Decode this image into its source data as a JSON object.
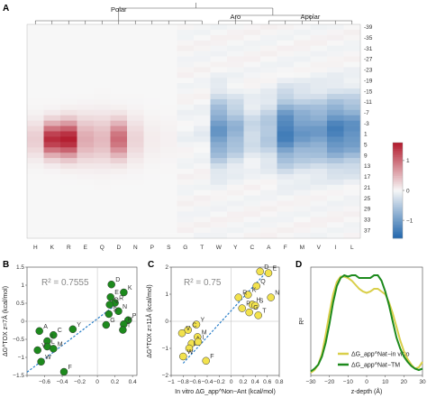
{
  "panels": [
    {
      "letter": "A"
    },
    {
      "letter": "B"
    },
    {
      "letter": "C"
    },
    {
      "letter": "D"
    }
  ],
  "chart_data": [
    {
      "type": "heatmap",
      "panel": "A",
      "group_labels": [
        "Polar",
        "Aro",
        "Apolar"
      ],
      "x_categories": [
        "H",
        "K",
        "R",
        "E",
        "Q",
        "D",
        "N",
        "P",
        "S",
        "G",
        "T",
        "W",
        "Y",
        "C",
        "A",
        "F",
        "M",
        "V",
        "I",
        "L"
      ],
      "y_tick_labels": [
        "-39",
        "-35",
        "-31",
        "-27",
        "-23",
        "-19",
        "-15",
        "-11",
        "-7",
        "-3",
        "1",
        "5",
        "9",
        "13",
        "17",
        "21",
        "25",
        "29",
        "33",
        "37"
      ],
      "z_values": [
        "-39",
        "-37",
        "-35",
        "-33",
        "-31",
        "-29",
        "-27",
        "-25",
        "-23",
        "-21",
        "-19",
        "-17",
        "-15",
        "-13",
        "-11",
        "-9",
        "-7",
        "-5",
        "-3",
        "-1",
        "1",
        "3",
        "5",
        "7",
        "9",
        "11",
        "13",
        "15",
        "17",
        "19",
        "21",
        "23",
        "25",
        "27",
        "29",
        "31",
        "33",
        "35",
        "37",
        "39"
      ],
      "colorbar_ticks": [
        {
          "value": 1,
          "label": "1"
        },
        {
          "value": 0,
          "label": "0"
        },
        {
          "value": -1,
          "label": "−1"
        }
      ],
      "colorbar_range": [
        -1.6,
        1.6
      ],
      "colors": {
        "positive": "#b2182b",
        "neutral": "#f7f7f7",
        "negative": "#2166ac"
      },
      "residue_profiles": {
        "H": {
          "peak": 0.3,
          "width": 7
        },
        "K": {
          "peak": 1.45,
          "width": 6
        },
        "R": {
          "peak": 1.55,
          "width": 6.5
        },
        "E": {
          "peak": 0.55,
          "width": 8
        },
        "Q": {
          "peak": 0.45,
          "width": 8.5
        },
        "D": {
          "peak": 1.0,
          "width": 7
        },
        "N": {
          "peak": 0.25,
          "width": 8
        },
        "P": {
          "peak": 0.08,
          "width": 8
        },
        "S": {
          "peak": 0.05,
          "width": 8
        },
        "G": {
          "peak": -0.05,
          "width": 8
        },
        "T": {
          "peak": -0.1,
          "width": 8
        },
        "W": {
          "peak": -1.05,
          "width": 12
        },
        "Y": {
          "peak": -0.75,
          "width": 11
        },
        "C": {
          "peak": -0.35,
          "width": 10
        },
        "A": {
          "peak": -0.55,
          "width": 11
        },
        "F": {
          "peak": -1.35,
          "width": 12
        },
        "M": {
          "peak": -1.05,
          "width": 12
        },
        "V": {
          "peak": -1.0,
          "width": 12
        },
        "I": {
          "peak": -1.3,
          "width": 12
        },
        "L": {
          "peak": -1.15,
          "width": 12
        }
      }
    },
    {
      "type": "scatter",
      "panel": "B",
      "annotation": "R² = 0.7555",
      "xlabel": "",
      "ylabel": "ΔG^TOX z=7Å (kcal/mol)",
      "xlim": [
        -0.8,
        0.45
      ],
      "ylim": [
        -1.5,
        1.5
      ],
      "x_ticks": [
        -0.8,
        -0.6,
        -0.4,
        -0.2,
        0,
        0.2,
        0.4
      ],
      "x_tick_labels": [
        "",
        "−0.6",
        "−0.4",
        "−0.2",
        "0",
        "0.2",
        "0.4"
      ],
      "y_ticks": [
        -1.5,
        -1,
        -0.5,
        0,
        0.5,
        1,
        1.5
      ],
      "y_tick_labels": [
        "−1.5",
        "−1",
        "−0.5",
        "0",
        "0.5",
        "1",
        "1.5"
      ],
      "point_color": "#1d8a1d",
      "points": [
        {
          "label": "D",
          "x": 0.16,
          "y": 1.02
        },
        {
          "label": "K",
          "x": 0.3,
          "y": 0.8
        },
        {
          "label": "E",
          "x": 0.15,
          "y": 0.67
        },
        {
          "label": "R",
          "x": 0.2,
          "y": 0.51
        },
        {
          "label": "Q",
          "x": 0.14,
          "y": 0.46
        },
        {
          "label": "N",
          "x": 0.24,
          "y": 0.28
        },
        {
          "label": "S",
          "x": 0.13,
          "y": 0.2
        },
        {
          "label": "P",
          "x": 0.35,
          "y": 0.03
        },
        {
          "label": "H",
          "x": 0.3,
          "y": -0.08
        },
        {
          "label": "G",
          "x": 0.1,
          "y": -0.1
        },
        {
          "label": "T",
          "x": 0.29,
          "y": -0.24
        },
        {
          "label": "Y",
          "x": -0.28,
          "y": -0.22
        },
        {
          "label": "A",
          "x": -0.66,
          "y": -0.27
        },
        {
          "label": "C",
          "x": -0.5,
          "y": -0.38
        },
        {
          "label": "I",
          "x": -0.57,
          "y": -0.55
        },
        {
          "label": "L",
          "x": -0.57,
          "y": -0.7
        },
        {
          "label": "M",
          "x": -0.5,
          "y": -0.76
        },
        {
          "label": "V",
          "x": -0.68,
          "y": -0.8
        },
        {
          "label": "W",
          "x": -0.64,
          "y": -1.12
        },
        {
          "label": "F",
          "x": -0.38,
          "y": -1.4
        }
      ],
      "fit": {
        "x0": -0.8,
        "y0": -1.41,
        "x1": 0.2,
        "y1": 0.44
      }
    },
    {
      "type": "scatter",
      "panel": "C",
      "annotation": "R² = 0.75",
      "xlabel": "In vitro ΔG_app^Non−Ant (kcal/mol)",
      "ylabel": "ΔG^TOX z=11Å (kcal/mol)",
      "xlim": [
        -1.0,
        0.8
      ],
      "ylim": [
        -2.0,
        2.0
      ],
      "x_ticks": [
        -1,
        -0.8,
        -0.6,
        -0.4,
        -0.2,
        0,
        0.2,
        0.4,
        0.6,
        0.8
      ],
      "x_tick_labels": [
        "−1",
        "−0.8",
        "−0.6",
        "−0.4",
        "−0.2",
        "0",
        "0.2",
        "0.4",
        "0.6",
        "0.8"
      ],
      "y_ticks": [
        -2,
        -1,
        0,
        1,
        2
      ],
      "y_tick_labels": [
        "−2",
        "−1",
        "0",
        "1",
        "2"
      ],
      "point_color": "#f2e24d",
      "points": [
        {
          "label": "D",
          "x": 0.48,
          "y": 1.84
        },
        {
          "label": "E",
          "x": 0.62,
          "y": 1.78
        },
        {
          "label": "Q",
          "x": 0.42,
          "y": 1.3
        },
        {
          "label": "K",
          "x": 0.28,
          "y": 0.98
        },
        {
          "label": "R",
          "x": 0.12,
          "y": 0.88
        },
        {
          "label": "N",
          "x": 0.66,
          "y": 0.88
        },
        {
          "label": "H",
          "x": 0.35,
          "y": 0.62
        },
        {
          "label": "S",
          "x": 0.4,
          "y": 0.58
        },
        {
          "label": "P",
          "x": 0.18,
          "y": 0.48
        },
        {
          "label": "G",
          "x": 0.3,
          "y": 0.33
        },
        {
          "label": "T",
          "x": 0.45,
          "y": 0.22
        },
        {
          "label": "Y",
          "x": -0.58,
          "y": -0.12
        },
        {
          "label": "C",
          "x": -0.72,
          "y": -0.32
        },
        {
          "label": "V",
          "x": -0.82,
          "y": -0.44
        },
        {
          "label": "M",
          "x": -0.56,
          "y": -0.58
        },
        {
          "label": "A",
          "x": -0.66,
          "y": -0.82
        },
        {
          "label": "I",
          "x": -0.55,
          "y": -0.76
        },
        {
          "label": "L",
          "x": -0.7,
          "y": -1.0
        },
        {
          "label": "W",
          "x": -0.8,
          "y": -1.3
        },
        {
          "label": "F",
          "x": -0.42,
          "y": -1.46
        }
      ],
      "fit": {
        "x0": -0.8,
        "y0": -1.55,
        "x1": 0.6,
        "y1": 1.85
      }
    },
    {
      "type": "line",
      "panel": "D",
      "xlabel": "z-depth (Å)",
      "ylabel": "R²",
      "xlim": [
        -30,
        30
      ],
      "ylim": [
        0,
        0.8
      ],
      "x_ticks": [
        -30,
        -20,
        -10,
        0,
        10,
        20,
        30
      ],
      "x_tick_labels": [
        "−30",
        "−20",
        "−10",
        "0",
        "10",
        "20",
        "30"
      ],
      "series": [
        {
          "name": "ΔG_app^Nat−in vitro",
          "color": "#d9cf4a",
          "x": [
            -30,
            -28,
            -26,
            -24,
            -22,
            -20,
            -18,
            -16,
            -14,
            -12,
            -10,
            -8,
            -6,
            -4,
            -2,
            0,
            2,
            4,
            6,
            8,
            10,
            12,
            14,
            16,
            18,
            20,
            22,
            24,
            26,
            28,
            30
          ],
          "y": [
            0.02,
            0.04,
            0.08,
            0.16,
            0.3,
            0.46,
            0.6,
            0.69,
            0.73,
            0.73,
            0.72,
            0.7,
            0.67,
            0.64,
            0.62,
            0.61,
            0.62,
            0.64,
            0.64,
            0.62,
            0.6,
            0.54,
            0.46,
            0.36,
            0.26,
            0.18,
            0.12,
            0.08,
            0.05,
            0.06,
            0.1
          ]
        },
        {
          "name": "ΔG_app^Nat−TM",
          "color": "#1d8a1d",
          "x": [
            -30,
            -28,
            -26,
            -24,
            -22,
            -20,
            -18,
            -16,
            -14,
            -12,
            -10,
            -8,
            -6,
            -4,
            -2,
            0,
            2,
            4,
            6,
            8,
            10,
            12,
            14,
            16,
            18,
            20,
            22,
            24,
            26,
            28,
            30
          ],
          "y": [
            0.03,
            0.05,
            0.08,
            0.14,
            0.24,
            0.38,
            0.54,
            0.66,
            0.72,
            0.74,
            0.73,
            0.74,
            0.74,
            0.72,
            0.72,
            0.72,
            0.72,
            0.74,
            0.74,
            0.7,
            0.62,
            0.52,
            0.4,
            0.28,
            0.2,
            0.14,
            0.1,
            0.07,
            0.05,
            0.04,
            0.05
          ]
        }
      ],
      "legend_placement": "bottom-right"
    }
  ]
}
